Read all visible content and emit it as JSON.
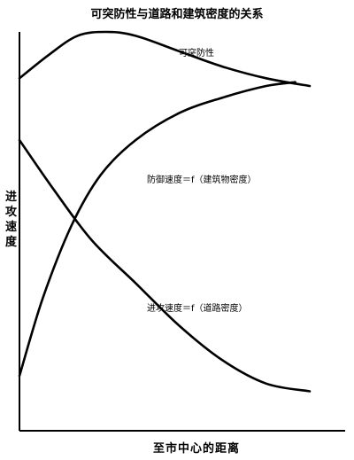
{
  "chart_data": {
    "type": "line",
    "title": "可突防性与道路和建筑密度的关系",
    "xlabel": "至市中心的距离",
    "ylabel": "进攻速度",
    "grid": false,
    "legend": "none",
    "xlim": [
      0,
      100
    ],
    "ylim": [
      0,
      100
    ],
    "series": [
      {
        "name": "可突防性",
        "x": [
          0,
          10,
          20,
          30,
          40,
          55,
          70,
          85,
          100
        ],
        "y": [
          88,
          94,
          99,
          100,
          99,
          95,
          91,
          88,
          86
        ]
      },
      {
        "name": "防御速度＝f（建筑物密度）",
        "x": [
          0,
          8,
          18,
          28,
          40,
          55,
          70,
          85,
          95
        ],
        "y": [
          11,
          31,
          50,
          63,
          72,
          79,
          83,
          86,
          87
        ]
      },
      {
        "name": "进攻速度＝f（道路密度）",
        "x": [
          0,
          12,
          25,
          40,
          55,
          70,
          85,
          100
        ],
        "y": [
          72,
          59,
          46,
          35,
          24,
          15,
          9,
          7
        ]
      }
    ]
  }
}
